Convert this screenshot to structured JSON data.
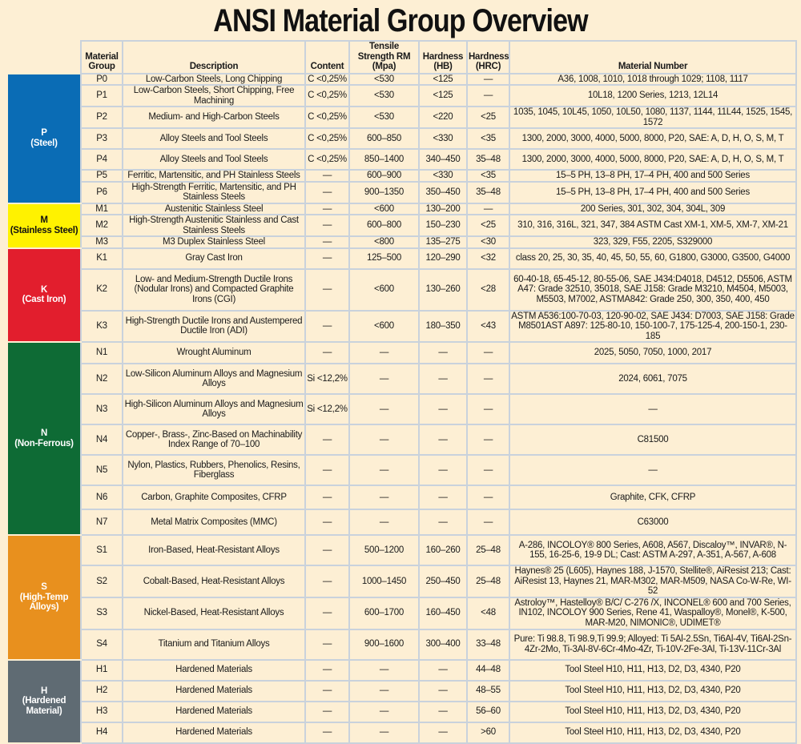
{
  "title": "ANSI Material Group Overview",
  "headers": {
    "material_group": "Material Group",
    "description": "Description",
    "content": "Content",
    "tensile": "Tensile Strength RM (Mpa)",
    "hb": "Hardness (HB)",
    "hrc": "Hardness (HRC)",
    "material_number": "Material Number"
  },
  "groups": [
    {
      "code": "P",
      "name": "(Steel)",
      "color": "#0a6cb5",
      "text_color": "#ffffff",
      "rows": [
        {
          "id": "P0",
          "desc": "Low-Carbon Steels, Long Chipping",
          "content": "C <0,25%",
          "tensile": "<530",
          "hb": "<125",
          "hrc": "—",
          "numbers": "A36, 1008, 1010, 1018 through 1029; 1108, 1117"
        },
        {
          "id": "P1",
          "desc": "Low-Carbon Steels, Short Chipping, Free Machining",
          "content": "C <0,25%",
          "tensile": "<530",
          "hb": "<125",
          "hrc": "—",
          "numbers": "10L18, 1200 Series, 1213, 12L14"
        },
        {
          "id": "P2",
          "desc": "Medium- and High-Carbon Steels",
          "content": "C <0,25%",
          "tensile": "<530",
          "hb": "<220",
          "hrc": "<25",
          "numbers": "1035, 1045, 10L45, 1050, 10L50, 1080, 1137, 1144, 11L44, 1525, 1545, 1572"
        },
        {
          "id": "P3",
          "desc": "Alloy Steels and Tool Steels",
          "content": "C <0,25%",
          "tensile": "600–850",
          "hb": "<330",
          "hrc": "<35",
          "numbers": "1300, 2000, 3000, 4000, 5000, 8000, P20, SAE: A, D, H, O, S, M, T"
        },
        {
          "id": "P4",
          "desc": "Alloy Steels and Tool Steels",
          "content": "C <0,25%",
          "tensile": "850–1400",
          "hb": "340–450",
          "hrc": "35–48",
          "numbers": "1300, 2000, 3000, 4000, 5000, 8000, P20, SAE: A, D, H, O, S, M, T"
        },
        {
          "id": "P5",
          "desc": "Ferritic, Martensitic, and PH Stainless Steels",
          "content": "—",
          "tensile": "600–900",
          "hb": "<330",
          "hrc": "<35",
          "numbers": "15–5 PH, 13–8 PH, 17–4 PH, 400 and 500 Series"
        },
        {
          "id": "P6",
          "desc": "High-Strength Ferritic, Martensitic, and PH Stainless Steels",
          "content": "—",
          "tensile": "900–1350",
          "hb": "350–450",
          "hrc": "35–48",
          "numbers": "15–5 PH, 13–8 PH, 17–4 PH, 400 and 500 Series"
        }
      ]
    },
    {
      "code": "M",
      "name": "(Stainless Steel)",
      "color": "#fff200",
      "text_color": "#111111",
      "rows": [
        {
          "id": "M1",
          "desc": "Austenitic Stainless Steel",
          "content": "—",
          "tensile": "<600",
          "hb": "130–200",
          "hrc": "—",
          "numbers": "200 Series, 301, 302, 304, 304L, 309"
        },
        {
          "id": "M2",
          "desc": "High-Strength Austenitic Stainless and Cast Stainless Steels",
          "content": "—",
          "tensile": "600–800",
          "hb": "150–230",
          "hrc": "<25",
          "numbers": "310, 316, 316L, 321, 347, 384 ASTM Cast XM-1, XM-5, XM-7, XM-21"
        },
        {
          "id": "M3",
          "desc": "M3 Duplex Stainless Steel",
          "content": "—",
          "tensile": "<800",
          "hb": "135–275",
          "hrc": "<30",
          "numbers": "323, 329, F55, 2205, S329000"
        }
      ]
    },
    {
      "code": "K",
      "name": "(Cast Iron)",
      "color": "#e21e2d",
      "text_color": "#ffffff",
      "rows": [
        {
          "id": "K1",
          "desc": "Gray Cast Iron",
          "content": "—",
          "tensile": "125–500",
          "hb": "120–290",
          "hrc": "<32",
          "numbers": "class 20, 25, 30, 35, 40, 45, 50, 55, 60, G1800, G3000, G3500, G4000"
        },
        {
          "id": "K2",
          "desc": "Low- and Medium-Strength Ductile Irons (Nodular Irons) and Compacted Graphite Irons (CGI)",
          "content": "—",
          "tensile": "<600",
          "hb": "130–260",
          "hrc": "<28",
          "numbers": "60-40-18, 65-45-12, 80-55-06, SAE J434:D4018, D4512, D5506, ASTM A47: Grade 32510, 35018, SAE J158: Grade M3210, M4504, M5003, M5503, M7002, ASTMA842: Grade 250, 300, 350, 400, 450"
        },
        {
          "id": "K3",
          "desc": "High-Strength Ductile Irons and Austempered Ductile Iron (ADI)",
          "content": "—",
          "tensile": "<600",
          "hb": "180–350",
          "hrc": "<43",
          "numbers": "ASTM A536:100-70-03, 120-90-02, SAE J434: D7003, SAE J158: Grade M8501AST A897: 125-80-10, 150-100-7, 175-125-4, 200-150-1, 230-185"
        }
      ]
    },
    {
      "code": "N",
      "name": "(Non-Ferrous)",
      "color": "#0e6b35",
      "text_color": "#ffffff",
      "rows": [
        {
          "id": "N1",
          "desc": "Wrought Aluminum",
          "content": "—",
          "tensile": "—",
          "hb": "—",
          "hrc": "—",
          "numbers": "2025, 5050, 7050, 1000, 2017"
        },
        {
          "id": "N2",
          "desc": "Low-Silicon Aluminum Alloys and Magnesium Alloys",
          "content": "Si <12,2%",
          "tensile": "—",
          "hb": "—",
          "hrc": "—",
          "numbers": "2024, 6061, 7075"
        },
        {
          "id": "N3",
          "desc": "High-Silicon Aluminum Alloys and Magnesium Alloys",
          "content": "Si <12,2%",
          "tensile": "—",
          "hb": "—",
          "hrc": "—",
          "numbers": "—"
        },
        {
          "id": "N4",
          "desc": "Copper-, Brass-, Zinc-Based on Machinability Index Range of 70–100",
          "content": "—",
          "tensile": "—",
          "hb": "—",
          "hrc": "—",
          "numbers": "C81500"
        },
        {
          "id": "N5",
          "desc": "Nylon, Plastics, Rubbers, Phenolics, Resins, Fiberglass",
          "content": "—",
          "tensile": "—",
          "hb": "—",
          "hrc": "—",
          "numbers": "—"
        },
        {
          "id": "N6",
          "desc": "Carbon, Graphite Composites, CFRP",
          "content": "—",
          "tensile": "—",
          "hb": "—",
          "hrc": "—",
          "numbers": "Graphite, CFK, CFRP"
        },
        {
          "id": "N7",
          "desc": "Metal Matrix Composites (MMC)",
          "content": "—",
          "tensile": "—",
          "hb": "—",
          "hrc": "—",
          "numbers": "C63000"
        }
      ]
    },
    {
      "code": "S",
      "name": "(High-Temp Alloys)",
      "color": "#e8901e",
      "text_color": "#ffffff",
      "rows": [
        {
          "id": "S1",
          "desc": "Iron-Based, Heat-Resistant Alloys",
          "content": "—",
          "tensile": "500–1200",
          "hb": "160–260",
          "hrc": "25–48",
          "numbers": "A-286, INCOLOY® 800 Series, A608, A567, Discaloy™, INVAR®, N-155, 16-25-6, 19-9 DL; Cast: ASTM A-297, A-351, A-567, A-608"
        },
        {
          "id": "S2",
          "desc": "Cobalt-Based, Heat-Resistant Alloys",
          "content": "—",
          "tensile": "1000–1450",
          "hb": "250–450",
          "hrc": "25–48",
          "numbers": "Haynes® 25 (L605), Haynes 188, J-1570, Stellite®, AiResist 213; Cast: AiResist 13, Haynes 21, MAR-M302, MAR-M509, NASA Co-W-Re, WI-52"
        },
        {
          "id": "S3",
          "desc": "Nickel-Based, Heat-Resistant Alloys",
          "content": "—",
          "tensile": "600–1700",
          "hb": "160–450",
          "hrc": "<48",
          "numbers": "Astroloy™, Hastelloy® B/C/ C-276 /X, INCONEL® 600 and 700 Series, IN102, INCOLOY 900 Series, Rene 41, Waspalloy®, Monel®, K-500, MAR-M20, NIMONIC®, UDIMET®"
        },
        {
          "id": "S4",
          "desc": "Titanium and Titanium Alloys",
          "content": "—",
          "tensile": "900–1600",
          "hb": "300–400",
          "hrc": "33–48",
          "numbers": "Pure: Ti 98.8, Ti 98.9,Ti 99.9; Alloyed: Ti 5Al-2.5Sn, Ti6Al-4V, Ti6Al-2Sn-4Zr-2Mo, Ti-3Al-8V-6Cr-4Mo-4Zr, Ti-10V-2Fe-3Al, Ti-13V-11Cr-3Al"
        }
      ]
    },
    {
      "code": "H",
      "name": "(Hardened Material)",
      "color": "#5f6b73",
      "text_color": "#ffffff",
      "rows": [
        {
          "id": "H1",
          "desc": "Hardened Materials",
          "content": "—",
          "tensile": "—",
          "hb": "—",
          "hrc": "44–48",
          "numbers": "Tool Steel H10, H11, H13, D2, D3, 4340, P20"
        },
        {
          "id": "H2",
          "desc": "Hardened Materials",
          "content": "—",
          "tensile": "—",
          "hb": "—",
          "hrc": "48–55",
          "numbers": "Tool Steel H10, H11, H13, D2, D3, 4340, P20"
        },
        {
          "id": "H3",
          "desc": "Hardened Materials",
          "content": "—",
          "tensile": "—",
          "hb": "—",
          "hrc": "56–60",
          "numbers": "Tool Steel H10, H11, H13, D2, D3, 4340, P20"
        },
        {
          "id": "H4",
          "desc": "Hardened Materials",
          "content": "—",
          "tensile": "—",
          "hb": "—",
          "hrc": ">60",
          "numbers": "Tool Steel H10, H11, H13, D2, D3, 4340, P20"
        }
      ]
    }
  ]
}
